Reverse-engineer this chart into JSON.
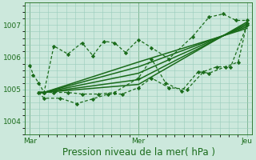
{
  "bg_color": "#cce8dc",
  "grid_color": "#99ccbb",
  "line_color": "#1a6b1a",
  "marker_color": "#1a6b1a",
  "xlabel": "Pression niveau de la mer( hPa )",
  "xlabel_fontsize": 8.5,
  "tick_fontsize": 6.5,
  "yticks": [
    1004,
    1005,
    1006,
    1007
  ],
  "ylim": [
    1003.6,
    1007.7
  ],
  "xlim": [
    -0.05,
    2.05
  ],
  "xtick_positions": [
    0,
    1,
    2
  ],
  "xtick_labels": [
    "Mar",
    "Mer",
    "Jeu"
  ],
  "series": [
    {
      "x": [
        0.0,
        0.03,
        0.08,
        0.13,
        0.22,
        0.35,
        0.48,
        0.58,
        0.68,
        0.78,
        0.88,
        1.0,
        1.12,
        1.28,
        1.5,
        1.65,
        1.78,
        1.9,
        2.0
      ],
      "y": [
        1005.75,
        1005.45,
        1005.2,
        1004.9,
        1006.35,
        1006.1,
        1006.45,
        1006.05,
        1006.5,
        1006.45,
        1006.15,
        1006.55,
        1006.3,
        1005.95,
        1006.65,
        1007.25,
        1007.35,
        1007.15,
        1007.15
      ],
      "style": "dotted",
      "marker": "D",
      "markersize": 2.2,
      "linewidth": 0.9
    },
    {
      "x": [
        0.08,
        0.13,
        1.0,
        2.0
      ],
      "y": [
        1004.9,
        1004.9,
        1005.15,
        1007.1
      ],
      "style": "solid",
      "marker": null,
      "linewidth": 1.1
    },
    {
      "x": [
        0.08,
        0.13,
        1.0,
        2.0
      ],
      "y": [
        1004.9,
        1004.9,
        1005.3,
        1007.05
      ],
      "style": "solid",
      "marker": null,
      "linewidth": 1.1
    },
    {
      "x": [
        0.08,
        0.13,
        1.0,
        2.0
      ],
      "y": [
        1004.9,
        1004.9,
        1005.5,
        1007.0
      ],
      "style": "solid",
      "marker": null,
      "linewidth": 1.1
    },
    {
      "x": [
        0.08,
        0.13,
        1.0,
        2.0
      ],
      "y": [
        1004.9,
        1004.9,
        1005.7,
        1006.95
      ],
      "style": "solid",
      "marker": null,
      "linewidth": 1.1
    },
    {
      "x": [
        0.08,
        0.13,
        1.0,
        2.0
      ],
      "y": [
        1004.9,
        1004.9,
        1005.85,
        1006.9
      ],
      "style": "solid",
      "marker": null,
      "linewidth": 1.1
    },
    {
      "x": [
        0.08,
        0.13,
        0.28,
        0.43,
        0.58,
        0.72,
        0.85,
        1.0,
        1.12,
        1.28,
        1.45,
        1.6,
        1.72,
        1.85,
        2.0
      ],
      "y": [
        1004.9,
        1004.72,
        1004.72,
        1004.55,
        1004.7,
        1004.85,
        1004.85,
        1005.05,
        1005.35,
        1005.05,
        1005.0,
        1005.55,
        1005.7,
        1005.7,
        1007.0
      ],
      "style": "dotted",
      "marker": "D",
      "markersize": 2.2,
      "linewidth": 0.9
    },
    {
      "x": [
        0.13,
        0.22,
        0.35,
        0.48,
        0.63,
        0.78,
        1.0,
        1.12,
        1.25,
        1.4,
        1.55,
        1.65,
        1.8,
        1.92,
        2.0
      ],
      "y": [
        1004.9,
        1004.9,
        1004.9,
        1004.85,
        1004.85,
        1004.9,
        1005.35,
        1005.95,
        1005.2,
        1004.95,
        1005.55,
        1005.5,
        1005.7,
        1005.85,
        1007.05
      ],
      "style": "dotted",
      "marker": "D",
      "markersize": 2.2,
      "linewidth": 0.9
    }
  ]
}
